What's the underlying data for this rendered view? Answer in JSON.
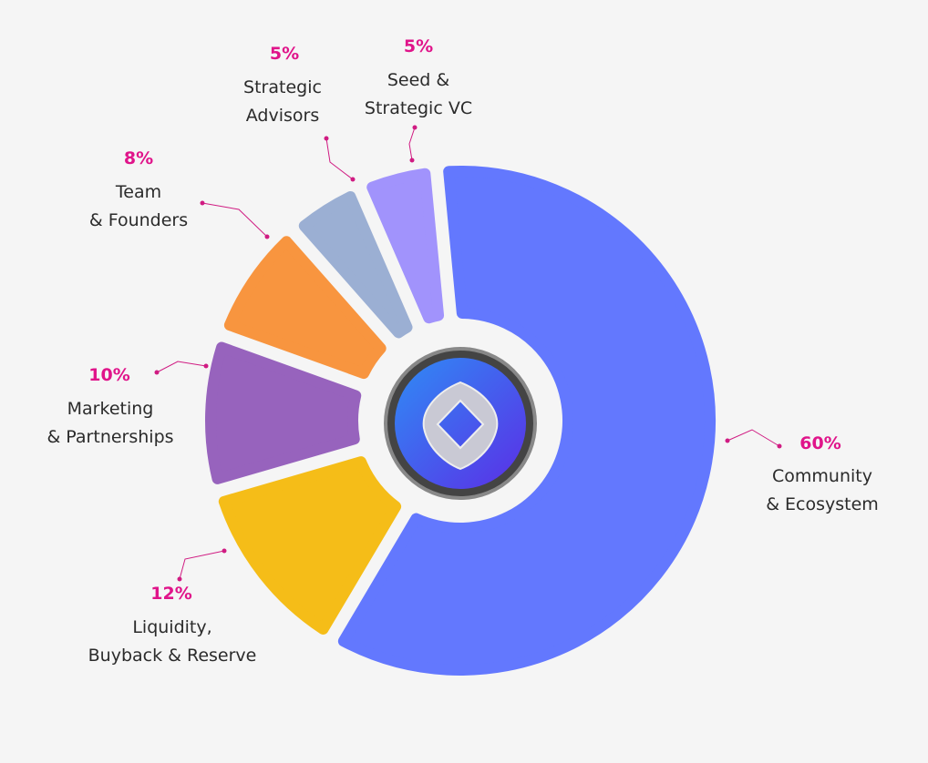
{
  "chart_data": {
    "type": "pie",
    "categories": [
      "Community\n& Ecosystem",
      "Liquidity,\nBuyback & Reserve",
      "Marketing\n& Partnerships",
      "Team\n& Founders",
      "Strategic\nAdvisors",
      "Seed &\nStrategic VC"
    ],
    "values": [
      60,
      12,
      10,
      8,
      5,
      5
    ],
    "value_labels": [
      "60%",
      "12%",
      "10%",
      "8%",
      "5%",
      "5%"
    ],
    "colors": [
      "#6378fe",
      "#f5bd18",
      "#9763bd",
      "#f8953f",
      "#9bafd3",
      "#a193fc"
    ]
  }
}
